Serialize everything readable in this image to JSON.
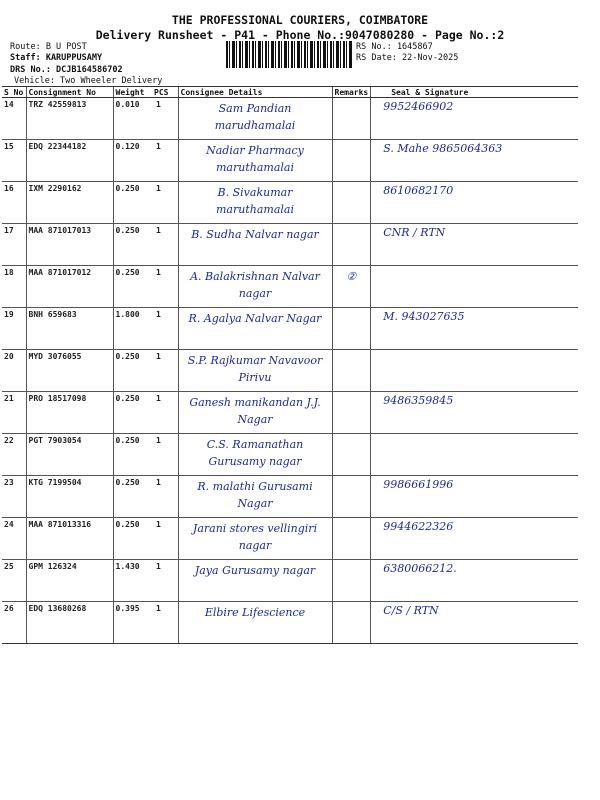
{
  "header": {
    "company": "THE PROFESSIONAL COURIERS, COIMBATORE",
    "subtitle": "Delivery Runsheet - P41 - Phone No.:9047080280 - Page No.:2",
    "route": "Route: B U POST",
    "staff": "Staff: KARUPPUSAMY",
    "drs_no": "DRS No.: DCJB164586702",
    "vehicle": "Vehicle: Two Wheeler Delivery",
    "rs_no": "RS No.: 1645867",
    "rs_date": "RS Date: 22-Nov-2025"
  },
  "table": {
    "columns": [
      "S No",
      "Consignment No",
      "Weight",
      "PCS",
      "Consignee Details",
      "Remarks",
      "Seal & Signature"
    ],
    "rows": [
      {
        "sno": "14",
        "cn": "TRZ 42559813",
        "weight": "0.010",
        "pcs": "1",
        "consignee": "Sam Pandian marudhamalai",
        "remarks": "",
        "signature": "9952466902"
      },
      {
        "sno": "15",
        "cn": "EDQ 22344182",
        "weight": "0.120",
        "pcs": "1",
        "consignee": "Nadiar Pharmacy maruthamalai",
        "remarks": "",
        "signature": "S. Mahe 9865064363"
      },
      {
        "sno": "16",
        "cn": "IXM 2290162",
        "weight": "0.250",
        "pcs": "1",
        "consignee": "B. Sivakumar maruthamalai",
        "remarks": "",
        "signature": "8610682170"
      },
      {
        "sno": "17",
        "cn": "MAA 871017013",
        "weight": "0.250",
        "pcs": "1",
        "consignee": "B. Sudha Nalvar nagar",
        "remarks": "",
        "signature": "CNR / RTN"
      },
      {
        "sno": "18",
        "cn": "MAA 871017012",
        "weight": "0.250",
        "pcs": "1",
        "consignee": "A. Balakrishnan Nalvar nagar",
        "remarks": "②",
        "signature": ""
      },
      {
        "sno": "19",
        "cn": "BNH 659683",
        "weight": "1.800",
        "pcs": "1",
        "consignee": "R. Agalya Nalvar Nagar",
        "remarks": "",
        "signature": "M. 943027635"
      },
      {
        "sno": "20",
        "cn": "MYD 3076055",
        "weight": "0.250",
        "pcs": "1",
        "consignee": "S.P. Rajkumar Navavoor Pirivu",
        "remarks": "",
        "signature": ""
      },
      {
        "sno": "21",
        "cn": "PRO 18517098",
        "weight": "0.250",
        "pcs": "1",
        "consignee": "Ganesh manikandan J.J. Nagar",
        "remarks": "",
        "signature": "9486359845"
      },
      {
        "sno": "22",
        "cn": "PGT 7903054",
        "weight": "0.250",
        "pcs": "1",
        "consignee": "C.S. Ramanathan Gurusamy nagar",
        "remarks": "",
        "signature": ""
      },
      {
        "sno": "23",
        "cn": "KTG 7199504",
        "weight": "0.250",
        "pcs": "1",
        "consignee": "R. malathi Gurusami Nagar",
        "remarks": "",
        "signature": "9986661996"
      },
      {
        "sno": "24",
        "cn": "MAA 871013316",
        "weight": "0.250",
        "pcs": "1",
        "consignee": "Jarani stores vellingiri nagar",
        "remarks": "",
        "signature": "9944622326"
      },
      {
        "sno": "25",
        "cn": "GPM 126324",
        "weight": "1.430",
        "pcs": "1",
        "consignee": "Jaya Gurusamy nagar",
        "remarks": "",
        "signature": "6380066212."
      },
      {
        "sno": "26",
        "cn": "EDQ 13680268",
        "weight": "0.395",
        "pcs": "1",
        "consignee": "Elbire Lifescience",
        "remarks": "",
        "signature": "C/S / RTN"
      }
    ]
  },
  "colors": {
    "ink": "#1b2a9c"
  }
}
